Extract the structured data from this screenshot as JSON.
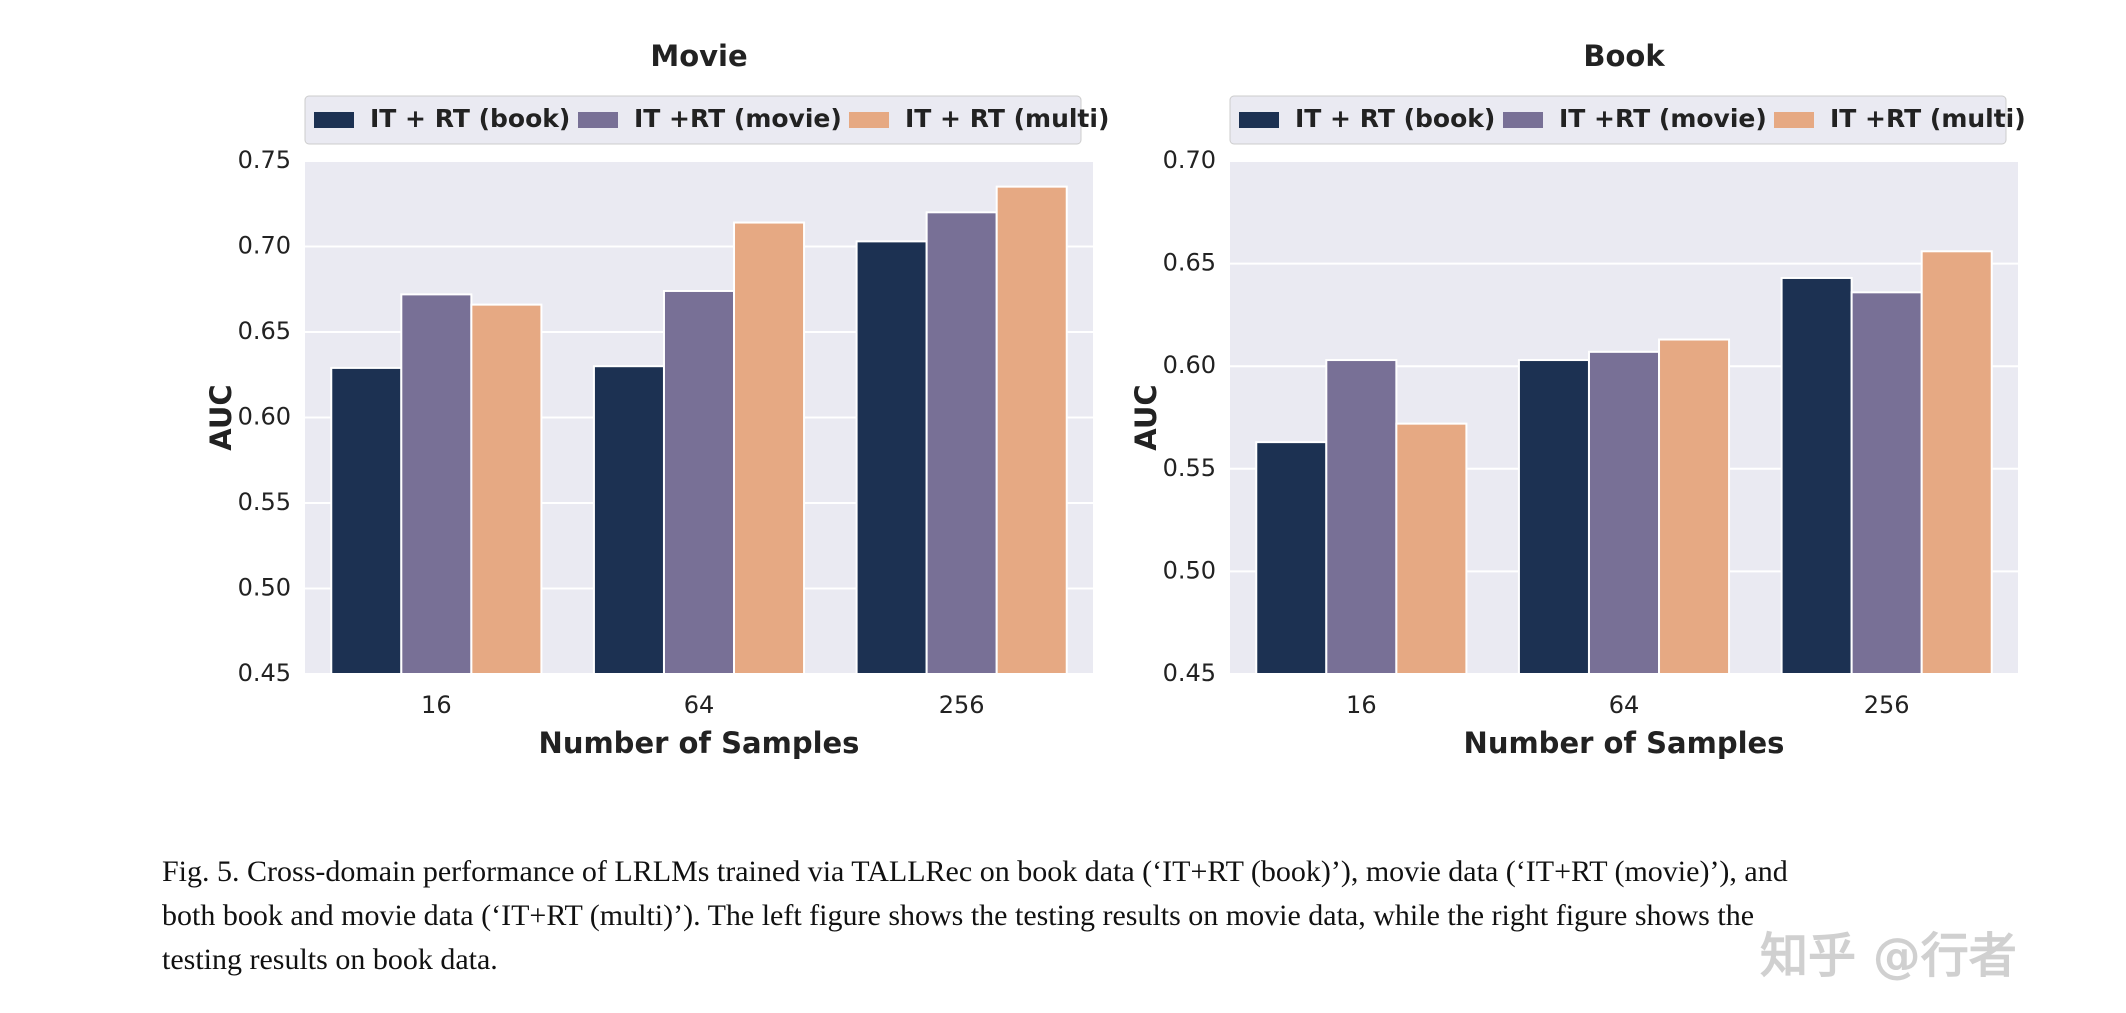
{
  "chart_data": [
    {
      "type": "bar",
      "title": "Movie",
      "xlabel": "Number of Samples",
      "ylabel": "AUC",
      "categories": [
        "16",
        "64",
        "256"
      ],
      "series": [
        {
          "name": "IT + RT (book)",
          "color": "#1c3152",
          "values": [
            0.629,
            0.63,
            0.703
          ]
        },
        {
          "name": "IT +RT (movie)",
          "color": "#787096",
          "values": [
            0.672,
            0.674,
            0.72
          ]
        },
        {
          "name": "IT + RT (multi)",
          "color": "#e6a983",
          "values": [
            0.666,
            0.714,
            0.735
          ]
        }
      ],
      "ylim": [
        0.45,
        0.75
      ],
      "yticks": [
        0.45,
        {
          "value": 0.5,
          "label": "0.50"
        },
        0.55,
        {
          "value": 0.6,
          "label": "0.60"
        },
        0.65,
        {
          "value": 0.7,
          "label": "0.70"
        },
        0.75
      ],
      "grid": true,
      "legend": "top"
    },
    {
      "type": "bar",
      "title": "Book",
      "xlabel": "Number of Samples",
      "ylabel": "AUC",
      "categories": [
        "16",
        "64",
        "256"
      ],
      "series": [
        {
          "name": "IT + RT (book)",
          "color": "#1c3152",
          "values": [
            0.563,
            0.603,
            0.643
          ]
        },
        {
          "name": "IT +RT (movie)",
          "color": "#787096",
          "values": [
            0.603,
            0.607,
            0.636
          ]
        },
        {
          "name": "IT +RT (multi)",
          "color": "#e6a983",
          "values": [
            0.572,
            0.613,
            0.656
          ]
        }
      ],
      "ylim": [
        0.45,
        0.7
      ],
      "yticks": [
        0.45,
        {
          "value": 0.5,
          "label": "0.50"
        },
        0.55,
        {
          "value": 0.6,
          "label": "0.60"
        },
        0.65,
        {
          "value": 0.7,
          "label": "0.70"
        }
      ],
      "grid": true,
      "legend": "top"
    }
  ],
  "caption": [
    "Fig. 5.  Cross-domain performance of LRLMs trained via TALLRec on book data (‘IT+RT (book)’), movie data (‘IT+RT (movie)’), and",
    "both book and movie data (‘IT+RT (multi)’). The left figure shows the testing results on movie data, while the right figure shows the",
    "testing results on book data."
  ],
  "watermark": "知乎 @行者"
}
